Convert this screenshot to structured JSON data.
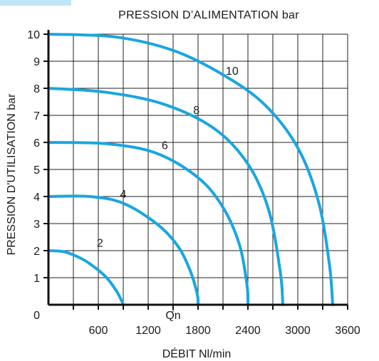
{
  "chart_data": {
    "type": "line",
    "title": "PRESSION D’ALIMENTATION bar",
    "xlabel": "DÉBIT Nl/min",
    "ylabel": "PRESSION D'UTILISATION bar",
    "xlim": [
      0,
      3600
    ],
    "ylim": [
      0,
      10.5
    ],
    "x_ticks": [
      0,
      600,
      1200,
      1800,
      2400,
      3000,
      3600
    ],
    "x_tick_labels": [
      "0",
      "600",
      "1200",
      "1800",
      "2400",
      "3000",
      "3600"
    ],
    "y_ticks": [
      1,
      2,
      3,
      4,
      5,
      6,
      7,
      8,
      9,
      10
    ],
    "y_tick_labels": [
      "1",
      "2",
      "3",
      "4",
      "5",
      "6",
      "7",
      "8",
      "9",
      "10"
    ],
    "grid": true,
    "line_color": "#1aa6df",
    "series": [
      {
        "name": "2",
        "label_at": [
          620,
          2.15
        ],
        "x": [
          0,
          200,
          400,
          550,
          700,
          820,
          880,
          900
        ],
        "y": [
          2.0,
          1.95,
          1.7,
          1.4,
          1.0,
          0.5,
          0.15,
          0
        ]
      },
      {
        "name": "4",
        "label_at": [
          900,
          3.95
        ],
        "x": [
          0,
          500,
          900,
          1300,
          1550,
          1700,
          1790,
          1800
        ],
        "y": [
          4.0,
          4.0,
          3.75,
          3.0,
          2.2,
          1.3,
          0.4,
          0
        ]
      },
      {
        "name": "6",
        "label_at": [
          1400,
          5.75
        ],
        "x": [
          0,
          700,
          1300,
          1800,
          2100,
          2300,
          2390,
          2400
        ],
        "y": [
          6.0,
          5.95,
          5.6,
          4.7,
          3.6,
          2.2,
          0.7,
          0
        ]
      },
      {
        "name": "8",
        "label_at": [
          1780,
          7.05
        ],
        "x": [
          0,
          700,
          1400,
          2000,
          2400,
          2650,
          2790,
          2820
        ],
        "y": [
          8.0,
          7.85,
          7.4,
          6.5,
          5.2,
          3.5,
          1.2,
          0
        ]
      },
      {
        "name": "10",
        "label_at": [
          2210,
          8.5
        ],
        "x": [
          0,
          800,
          1500,
          2100,
          2600,
          3000,
          3250,
          3380,
          3420
        ],
        "y": [
          10.0,
          9.9,
          9.4,
          8.5,
          7.4,
          5.8,
          3.8,
          1.5,
          0
        ]
      }
    ],
    "annotations": [
      {
        "text": "Qn",
        "x": 1500,
        "y": 5,
        "style": "dashed guide to axes"
      }
    ]
  }
}
